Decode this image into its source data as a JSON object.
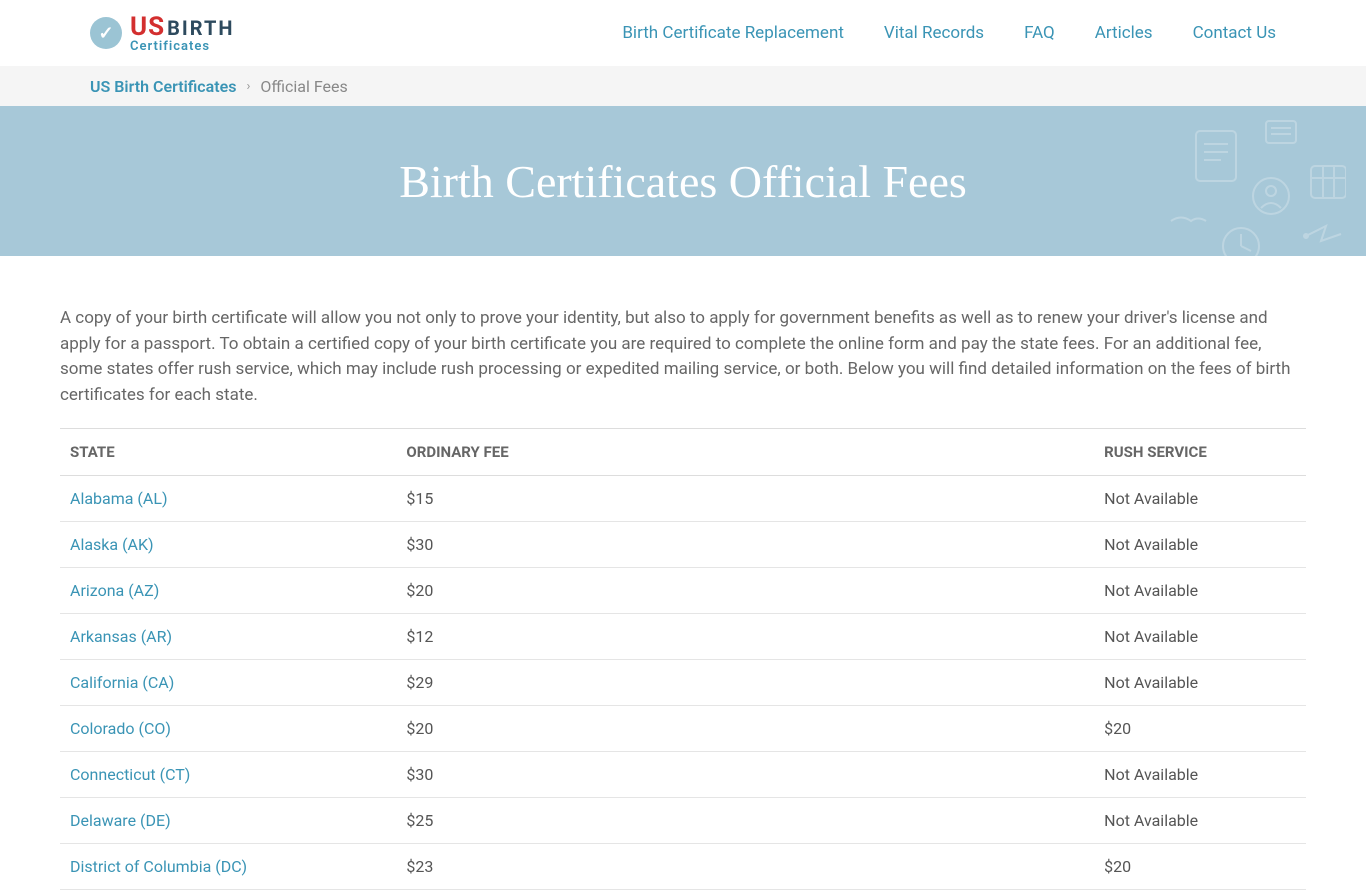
{
  "logo": {
    "us": "US",
    "birth": "BIRTH",
    "certificates": "Certificates"
  },
  "nav": {
    "items": [
      {
        "label": "Birth Certificate Replacement"
      },
      {
        "label": "Vital Records"
      },
      {
        "label": "FAQ"
      },
      {
        "label": "Articles"
      },
      {
        "label": "Contact Us"
      }
    ]
  },
  "breadcrumb": {
    "home": "US Birth Certificates",
    "current": "Official Fees"
  },
  "hero": {
    "title": "Birth Certificates Official Fees",
    "bg_color": "#a7c8d8",
    "text_color": "#ffffff"
  },
  "intro": "A copy of your birth certificate will allow you not only to prove your identity, but also to apply for government benefits as well as to renew your driver's license and apply for a passport. To obtain a certified copy of your birth certificate you are required to complete the online form and pay the state fees. For an additional fee, some states offer rush service, which may include rush processing or expedited mailing service, or both. Below you will find detailed information on the fees of birth certificates for each state.",
  "table": {
    "columns": [
      {
        "label": "STATE",
        "key": "state",
        "width": "27%"
      },
      {
        "label": "ORDINARY FEE",
        "key": "ordinary",
        "width": "56%"
      },
      {
        "label": "RUSH SERVICE",
        "key": "rush",
        "width": "17%"
      }
    ],
    "rows": [
      {
        "state": "Alabama (AL)",
        "ordinary": "$15",
        "rush": "Not Available"
      },
      {
        "state": "Alaska (AK)",
        "ordinary": "$30",
        "rush": "Not Available"
      },
      {
        "state": "Arizona (AZ)",
        "ordinary": "$20",
        "rush": "Not Available"
      },
      {
        "state": "Arkansas (AR)",
        "ordinary": "$12",
        "rush": "Not Available"
      },
      {
        "state": "California (CA)",
        "ordinary": "$29",
        "rush": "Not Available"
      },
      {
        "state": "Colorado (CO)",
        "ordinary": "$20",
        "rush": "$20"
      },
      {
        "state": "Connecticut (CT)",
        "ordinary": "$30",
        "rush": "Not Available"
      },
      {
        "state": "Delaware (DE)",
        "ordinary": "$25",
        "rush": "Not Available"
      },
      {
        "state": "District of Columbia (DC)",
        "ordinary": "$23",
        "rush": "$20"
      }
    ],
    "link_color": "#3a94b5",
    "border_color": "#e5e5e5"
  },
  "colors": {
    "primary": "#3a94b5",
    "accent_red": "#d32f2f",
    "accent_navy": "#2d4a5e",
    "hero_bg": "#a7c8d8",
    "text": "#555555",
    "bg_light": "#f5f5f5"
  }
}
